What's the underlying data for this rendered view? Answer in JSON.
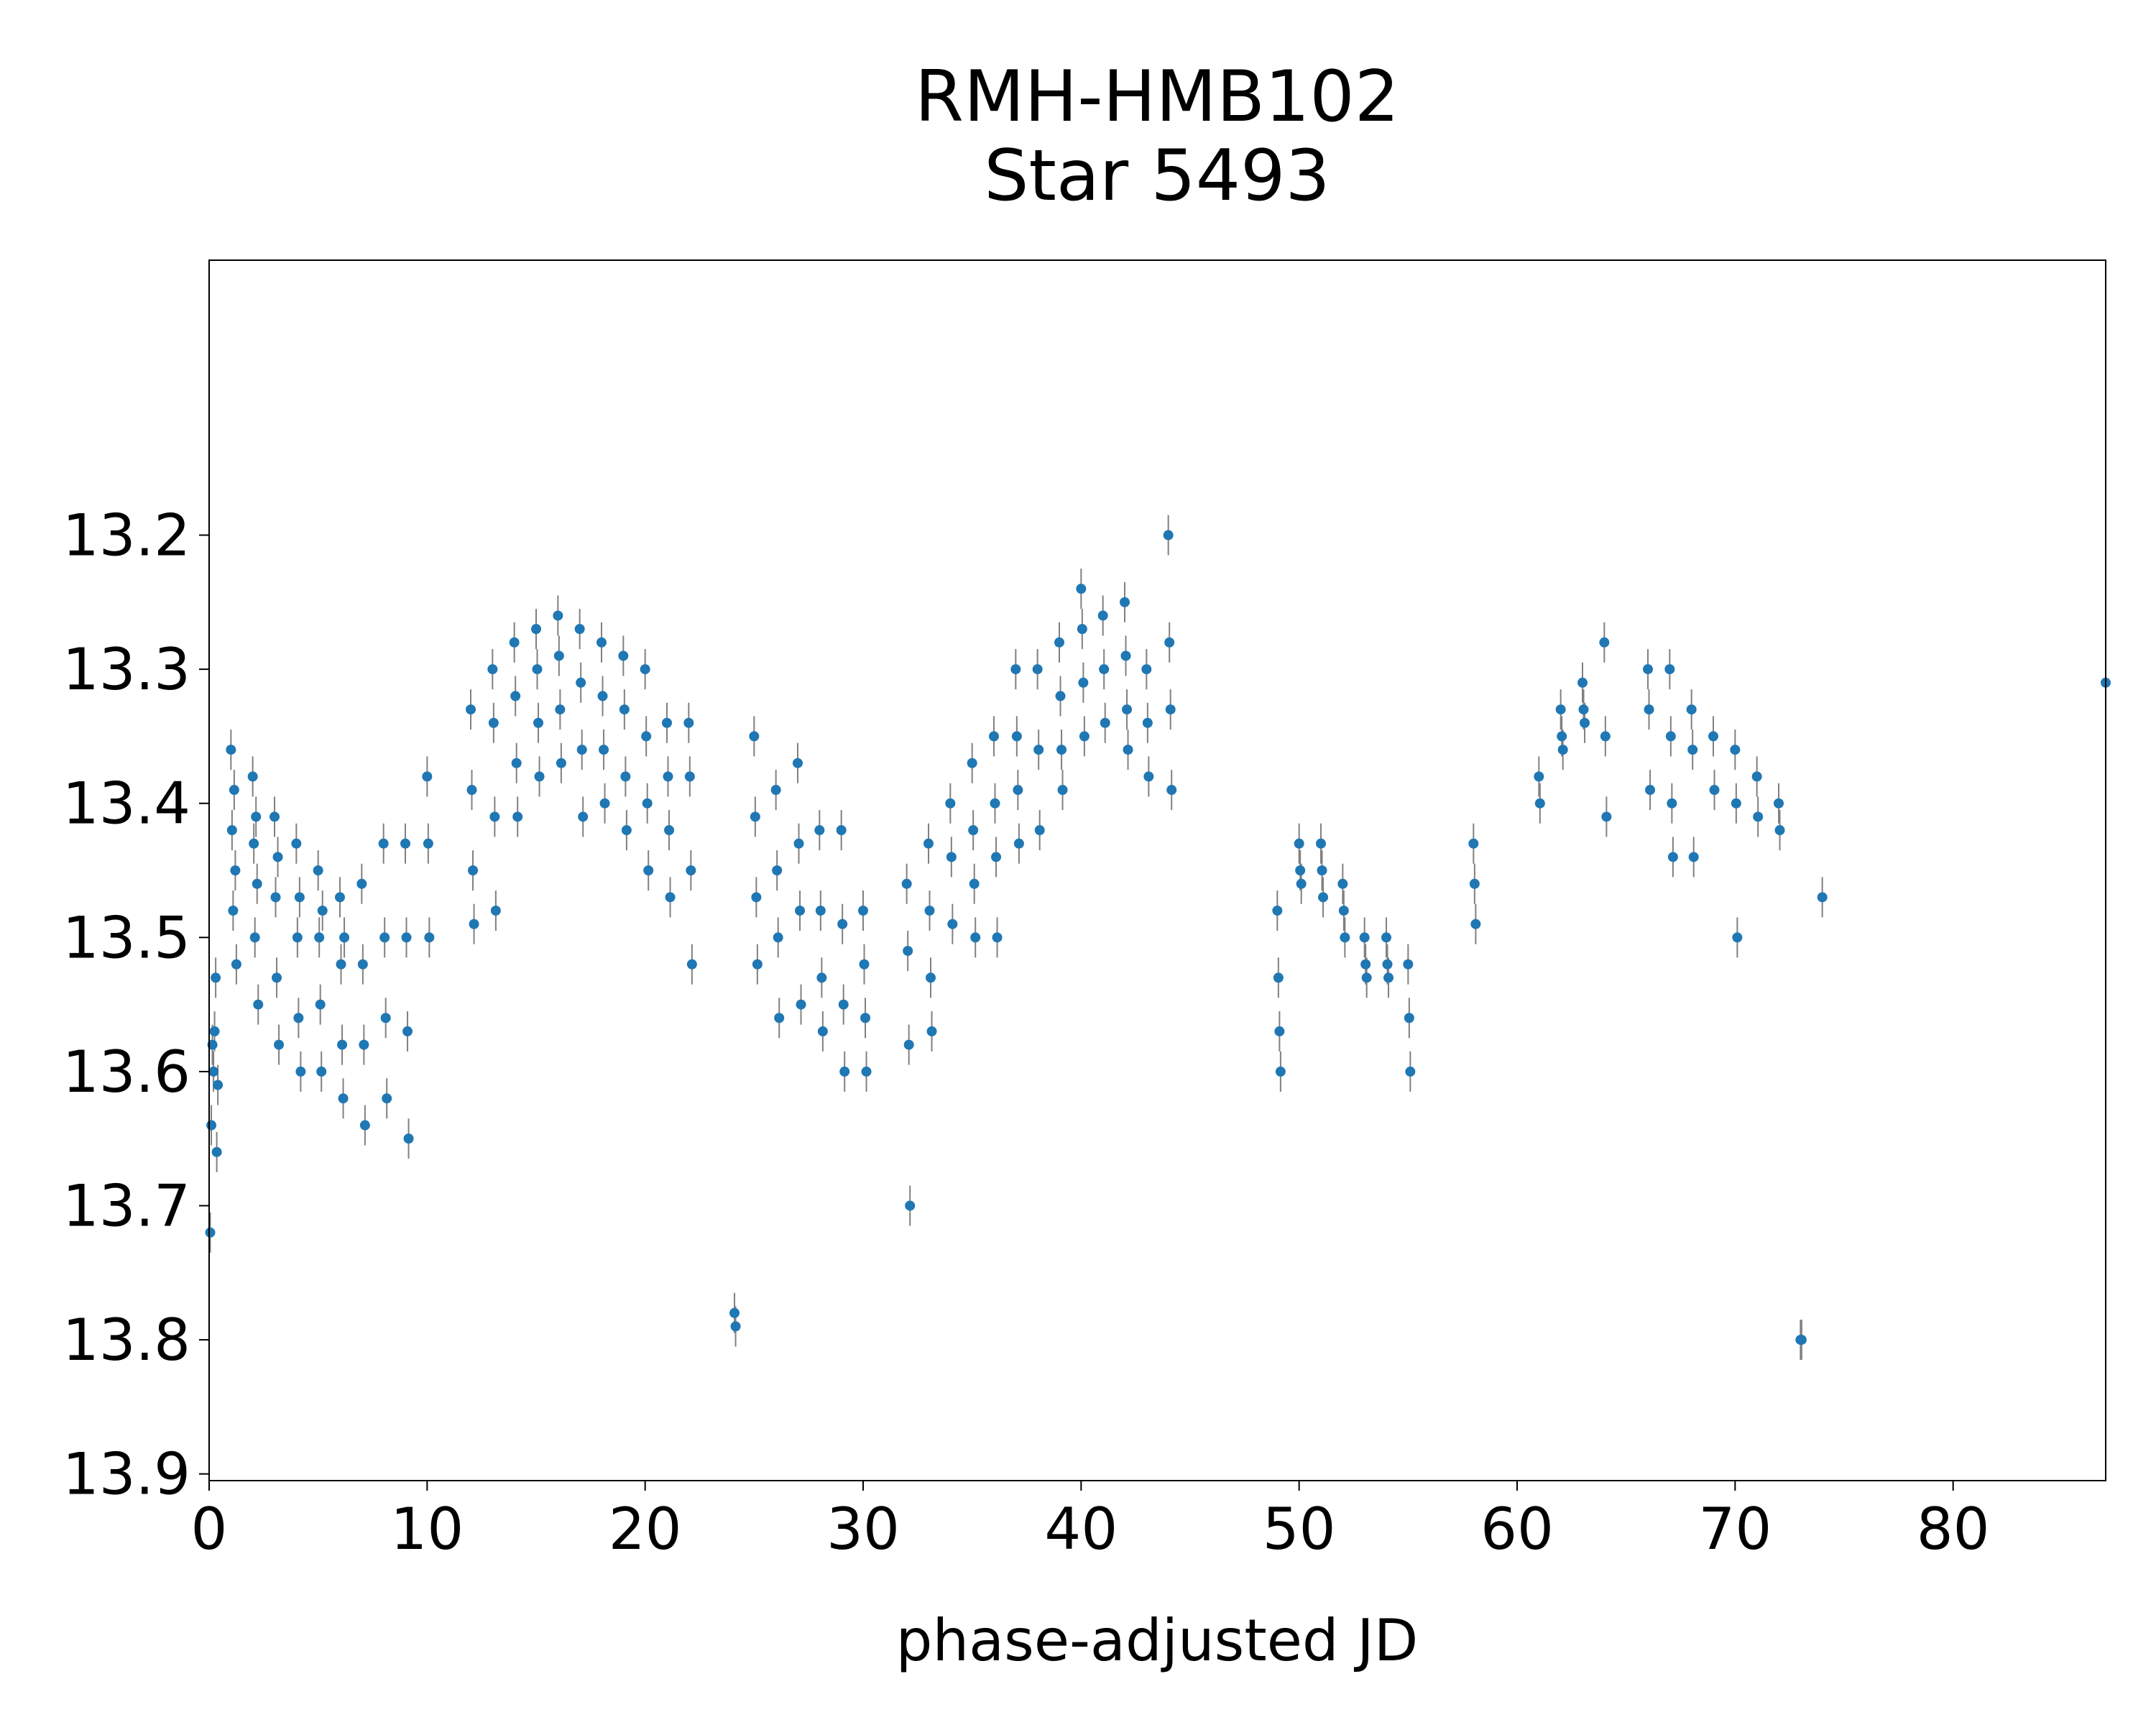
{
  "chart_data": {
    "type": "scatter",
    "title": [
      "RMH-HMB102",
      "Star 5493"
    ],
    "xlabel": "phase-adjusted JD",
    "ylabel": "",
    "xlim": [
      0,
      87
    ],
    "ylim": [
      13.905,
      12.995
    ],
    "y_inverted": true,
    "x_ticks": [
      0,
      10,
      20,
      30,
      40,
      50,
      60,
      70,
      80
    ],
    "x_tick_labels": [
      "0",
      "10",
      "20",
      "30",
      "40",
      "50",
      "60",
      "70",
      "80"
    ],
    "y_ticks": [
      13.2,
      13.3,
      13.4,
      13.5,
      13.6,
      13.7,
      13.8,
      13.9
    ],
    "y_tick_labels": [
      "13.2",
      "13.3",
      "13.4",
      "13.5",
      "13.6",
      "13.7",
      "13.8",
      "13.9"
    ],
    "grid": false,
    "marker_color": "#1f77b4",
    "errorbar_color": "#808080",
    "series": [
      {
        "x": [
          0.05,
          0.1,
          0.15,
          0.2,
          0.25,
          0.3,
          0.35,
          0.4,
          1.0,
          1.05,
          1.1,
          1.15,
          1.2,
          1.25,
          2.0,
          2.05,
          2.1,
          2.15,
          2.2,
          2.25,
          3.0,
          3.05,
          3.1,
          3.15,
          3.2,
          4.0,
          4.05,
          4.1,
          4.15,
          4.2,
          5.0,
          5.05,
          5.1,
          5.15,
          5.2,
          6.0,
          6.05,
          6.1,
          6.15,
          6.2,
          7.0,
          7.05,
          7.1,
          7.15,
          8.0,
          8.05,
          8.1,
          8.15,
          9.0,
          9.05,
          9.1,
          9.15,
          10.0,
          10.05,
          10.1,
          12.0,
          12.05,
          12.1,
          12.15,
          13.0,
          13.05,
          13.1,
          13.15,
          14.0,
          14.05,
          14.1,
          14.15,
          15.0,
          15.05,
          15.1,
          15.15,
          16.0,
          16.05,
          16.1,
          16.15,
          17.0,
          17.05,
          17.1,
          17.15,
          18.0,
          18.05,
          18.1,
          18.15,
          19.0,
          19.05,
          19.1,
          19.15,
          20.0,
          20.05,
          20.1,
          20.15,
          21.0,
          21.05,
          21.1,
          21.15,
          22.0,
          22.05,
          22.1,
          22.15,
          24.1,
          24.15,
          25.0,
          25.05,
          25.1,
          25.15,
          26.0,
          26.05,
          26.1,
          26.15,
          27.0,
          27.05,
          27.1,
          27.15,
          28.0,
          28.05,
          28.1,
          28.15,
          29.0,
          29.05,
          29.1,
          29.15,
          30.0,
          30.05,
          30.1,
          30.15,
          32.0,
          32.05,
          32.1,
          32.15,
          33.0,
          33.05,
          33.1,
          33.15,
          34.0,
          34.05,
          34.1,
          35.0,
          35.05,
          35.1,
          35.15,
          36.0,
          36.05,
          36.1,
          36.15,
          37.0,
          37.05,
          37.1,
          37.15,
          38.0,
          38.05,
          38.1,
          39.0,
          39.05,
          39.1,
          39.15,
          40.0,
          40.05,
          40.1,
          40.15,
          41.0,
          41.05,
          41.1,
          42.0,
          42.05,
          42.1,
          42.15,
          43.0,
          43.05,
          43.1,
          44.0,
          44.05,
          44.1,
          44.15,
          49.0,
          49.05,
          49.1,
          49.15,
          50.0,
          50.05,
          50.1,
          51.0,
          51.05,
          51.1,
          52.0,
          52.05,
          52.1,
          53.0,
          53.05,
          53.1,
          54.0,
          54.05,
          54.1,
          55.0,
          55.05,
          55.1,
          58.0,
          58.05,
          58.1,
          61.0,
          61.05,
          62.0,
          62.05,
          62.1,
          63.0,
          63.05,
          63.1,
          64.0,
          64.05,
          64.1,
          66.0,
          66.05,
          66.1,
          67.0,
          67.05,
          67.1,
          67.15,
          68.0,
          68.05,
          68.1,
          69.0,
          69.05,
          70.0,
          70.05,
          70.1,
          71.0,
          71.05,
          72.0,
          72.05,
          73.0,
          73.05,
          74.0,
          87.0
        ],
        "y": [
          13.72,
          13.64,
          13.58,
          13.6,
          13.57,
          13.53,
          13.66,
          13.61,
          13.36,
          13.42,
          13.48,
          13.39,
          13.45,
          13.52,
          13.38,
          13.43,
          13.5,
          13.41,
          13.46,
          13.55,
          13.41,
          13.47,
          13.53,
          13.44,
          13.58,
          13.43,
          13.5,
          13.56,
          13.47,
          13.6,
          13.45,
          13.5,
          13.55,
          13.6,
          13.48,
          13.47,
          13.52,
          13.58,
          13.62,
          13.5,
          13.46,
          13.52,
          13.58,
          13.64,
          13.43,
          13.5,
          13.56,
          13.62,
          13.43,
          13.5,
          13.57,
          13.65,
          13.38,
          13.43,
          13.5,
          13.33,
          13.39,
          13.45,
          13.49,
          13.3,
          13.34,
          13.41,
          13.48,
          13.28,
          13.32,
          13.37,
          13.41,
          13.27,
          13.3,
          13.34,
          13.38,
          13.26,
          13.29,
          13.33,
          13.37,
          13.27,
          13.31,
          13.36,
          13.41,
          13.28,
          13.32,
          13.36,
          13.4,
          13.29,
          13.33,
          13.38,
          13.42,
          13.3,
          13.35,
          13.4,
          13.45,
          13.34,
          13.38,
          13.42,
          13.47,
          13.34,
          13.38,
          13.45,
          13.52,
          13.78,
          13.79,
          13.35,
          13.41,
          13.47,
          13.52,
          13.39,
          13.45,
          13.5,
          13.56,
          13.37,
          13.43,
          13.48,
          13.55,
          13.42,
          13.48,
          13.53,
          13.57,
          13.42,
          13.49,
          13.55,
          13.6,
          13.48,
          13.52,
          13.56,
          13.6,
          13.46,
          13.51,
          13.58,
          13.7,
          13.43,
          13.48,
          13.53,
          13.57,
          13.4,
          13.44,
          13.49,
          13.37,
          13.42,
          13.46,
          13.5,
          13.35,
          13.4,
          13.44,
          13.5,
          13.3,
          13.35,
          13.39,
          13.43,
          13.3,
          13.36,
          13.42,
          13.28,
          13.32,
          13.36,
          13.39,
          13.24,
          13.27,
          13.31,
          13.35,
          13.26,
          13.3,
          13.34,
          13.25,
          13.29,
          13.33,
          13.36,
          13.3,
          13.34,
          13.38,
          13.2,
          13.28,
          13.33,
          13.39,
          13.48,
          13.53,
          13.57,
          13.6,
          13.43,
          13.45,
          13.46,
          13.43,
          13.45,
          13.47,
          13.46,
          13.48,
          13.5,
          13.5,
          13.52,
          13.53,
          13.5,
          13.52,
          13.53,
          13.52,
          13.56,
          13.6,
          13.43,
          13.46,
          13.49,
          13.38,
          13.4,
          13.33,
          13.35,
          13.36,
          13.31,
          13.33,
          13.34,
          13.28,
          13.35,
          13.41,
          13.3,
          13.33,
          13.39,
          13.3,
          13.35,
          13.4,
          13.44,
          13.33,
          13.36,
          13.44,
          13.35,
          13.39,
          13.36,
          13.4,
          13.5,
          13.38,
          13.41,
          13.4,
          13.42,
          13.8,
          13.8,
          13.47,
          13.31
        ]
      }
    ]
  }
}
